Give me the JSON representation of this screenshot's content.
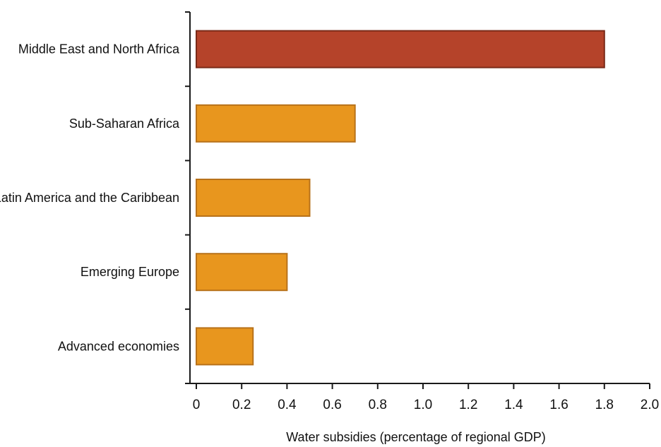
{
  "chart_data": {
    "type": "bar",
    "orientation": "horizontal",
    "categories": [
      "Middle East and North Africa",
      "Sub-Saharan Africa",
      "Latin America and the Caribbean",
      "Emerging Europe",
      "Advanced economies"
    ],
    "values": [
      1.8,
      0.7,
      0.5,
      0.4,
      0.25
    ],
    "bar_colors": [
      "#b5432a",
      "#e8961e",
      "#e8961e",
      "#e8961e",
      "#e8961e"
    ],
    "bar_edge_colors": [
      "#7a2a18",
      "#b8721a",
      "#b8721a",
      "#b8721a",
      "#b8721a"
    ],
    "xlabel": "Water subsidies (percentage of regional GDP)",
    "ylabel": "",
    "xlim": [
      0,
      2.0
    ],
    "xticks": [
      "0",
      "0.2",
      "0.4",
      "0.6",
      "0.8",
      "1.0",
      "1.2",
      "1.4",
      "1.6",
      "1.8",
      "2.0"
    ],
    "grid": false,
    "legend": "none"
  }
}
